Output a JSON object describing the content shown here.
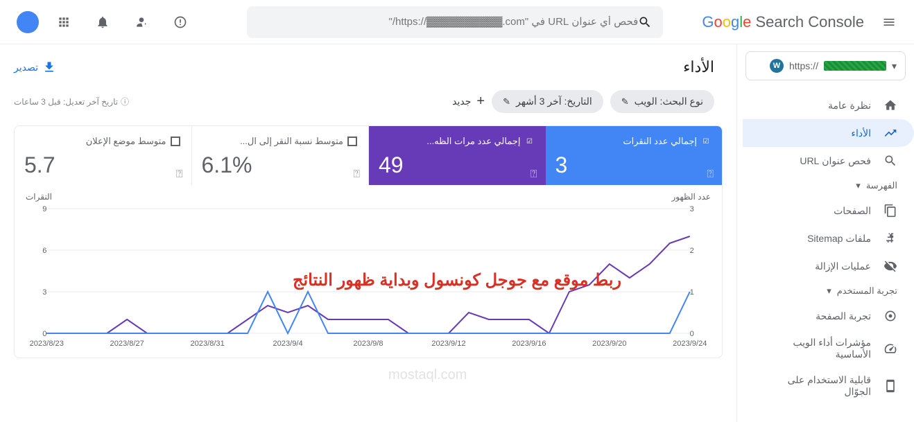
{
  "brand": {
    "google": "Google",
    "product": "Search Console"
  },
  "search": {
    "placeholder": "فحص أي عنوان URL في \"https://▓▓▓▓▓▓▓▓▓▓.com/\""
  },
  "property": {
    "prefix": "https://"
  },
  "nav": {
    "overview": "نظرة عامة",
    "performance": "الأداء",
    "url_inspect": "فحص عنوان URL",
    "indexing_section": "الفهرسة",
    "pages": "الصفحات",
    "sitemaps": "ملفات Sitemap",
    "removals": "عمليات الإزالة",
    "experience_section": "تجربة المستخدم",
    "page_exp": "تجربة الصفحة",
    "cwv": "مؤشرات أداء الويب الأساسية",
    "mobile": "قابلية الاستخدام على الجوّال"
  },
  "page": {
    "title": "الأداء",
    "export": "تصدير"
  },
  "filters": {
    "search_type": "نوع البحث: الويب",
    "date": "التاريخ: آخر 3 أشهر",
    "add": "جديد",
    "last_modified": "تاريخ آخر تعديل: قبل 3 ساعات"
  },
  "metrics": {
    "clicks": {
      "label": "إجمالي عدد النقرات",
      "value": "3",
      "color": "#4285f4"
    },
    "impressions": {
      "label": "إجمالي عدد مرات الظه...",
      "value": "49",
      "color": "#673ab7"
    },
    "ctr": {
      "label": "متوسط نسبة النقر إلى ال...",
      "value": "6.1%",
      "color": "#ffffff"
    },
    "position": {
      "label": "متوسط موضع الإعلان",
      "value": "5.7",
      "color": "#ffffff"
    }
  },
  "chart": {
    "y_right_label": "النقرات",
    "y_left_label": "عدد الظهور",
    "y_right_ticks": [
      "0",
      "1",
      "2",
      "3"
    ],
    "y_left_ticks": [
      "0",
      "3",
      "6",
      "9"
    ],
    "x_labels": [
      "2023/8/23",
      "2023/8/27",
      "2023/8/31",
      "2023/9/4",
      "2023/9/8",
      "2023/9/12",
      "2023/9/16",
      "2023/9/20",
      "2023/9/24"
    ],
    "clicks_color": "#4285f4",
    "impressions_color": "#673ab7",
    "clicks_points": [
      0,
      0,
      0,
      0,
      0,
      0,
      0,
      0,
      0,
      0,
      0,
      1,
      0,
      1,
      0,
      0,
      0,
      0,
      0,
      0,
      0,
      0,
      0,
      0,
      0,
      0,
      0,
      0,
      0,
      0,
      0,
      0,
      1
    ],
    "impressions_points": [
      0,
      0,
      0,
      0,
      1,
      0,
      0,
      0,
      0,
      0,
      1,
      2,
      1.5,
      2,
      1,
      1,
      1,
      1,
      0,
      0,
      0,
      1.5,
      1,
      1,
      1,
      0,
      3,
      3.5,
      5,
      4,
      5,
      6.5,
      7
    ],
    "grid_color": "#e8eaed"
  },
  "overlay": "ربط موقع مع جوجل كونسول وبداية ظهور النتائج",
  "watermark": "mostaql.com"
}
